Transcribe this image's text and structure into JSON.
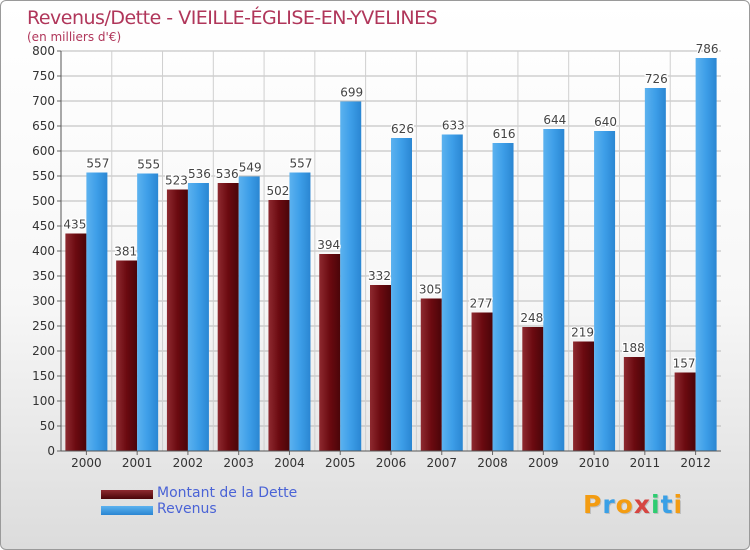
{
  "header": {
    "title": "Revenus/Dette - VIEILLE-ÉGLISE-EN-YVELINES",
    "subtitle": "(en milliers d'€)"
  },
  "legend": {
    "items": [
      {
        "label": "Montant de la Dette",
        "color": "#6b0a10"
      },
      {
        "label": "Revenus",
        "color": "#3d9ee8"
      }
    ]
  },
  "brand": {
    "letters": [
      "P",
      "r",
      "o",
      "x",
      "i",
      "t",
      "i"
    ],
    "colors": [
      "#f39c12",
      "#3aa0e6",
      "#f39c12",
      "#d64541",
      "#2ecc71",
      "#3aa0e6",
      "#f39c12"
    ]
  },
  "chart_data": {
    "type": "bar",
    "categories": [
      "2000",
      "2001",
      "2002",
      "2003",
      "2004",
      "2005",
      "2006",
      "2007",
      "2008",
      "2009",
      "2010",
      "2011",
      "2012"
    ],
    "series": [
      {
        "name": "Montant de la Dette",
        "color": "#6b0a10",
        "values": [
          435,
          381,
          523,
          536,
          502,
          394,
          332,
          305,
          277,
          248,
          219,
          188,
          157
        ]
      },
      {
        "name": "Revenus",
        "color": "#3d9ee8",
        "values": [
          557,
          555,
          536,
          549,
          557,
          699,
          626,
          633,
          616,
          644,
          640,
          726,
          786
        ]
      }
    ],
    "ylim": [
      0,
      800
    ],
    "ytick_step": 50,
    "grid": true,
    "legend_position": "bottom-left"
  }
}
